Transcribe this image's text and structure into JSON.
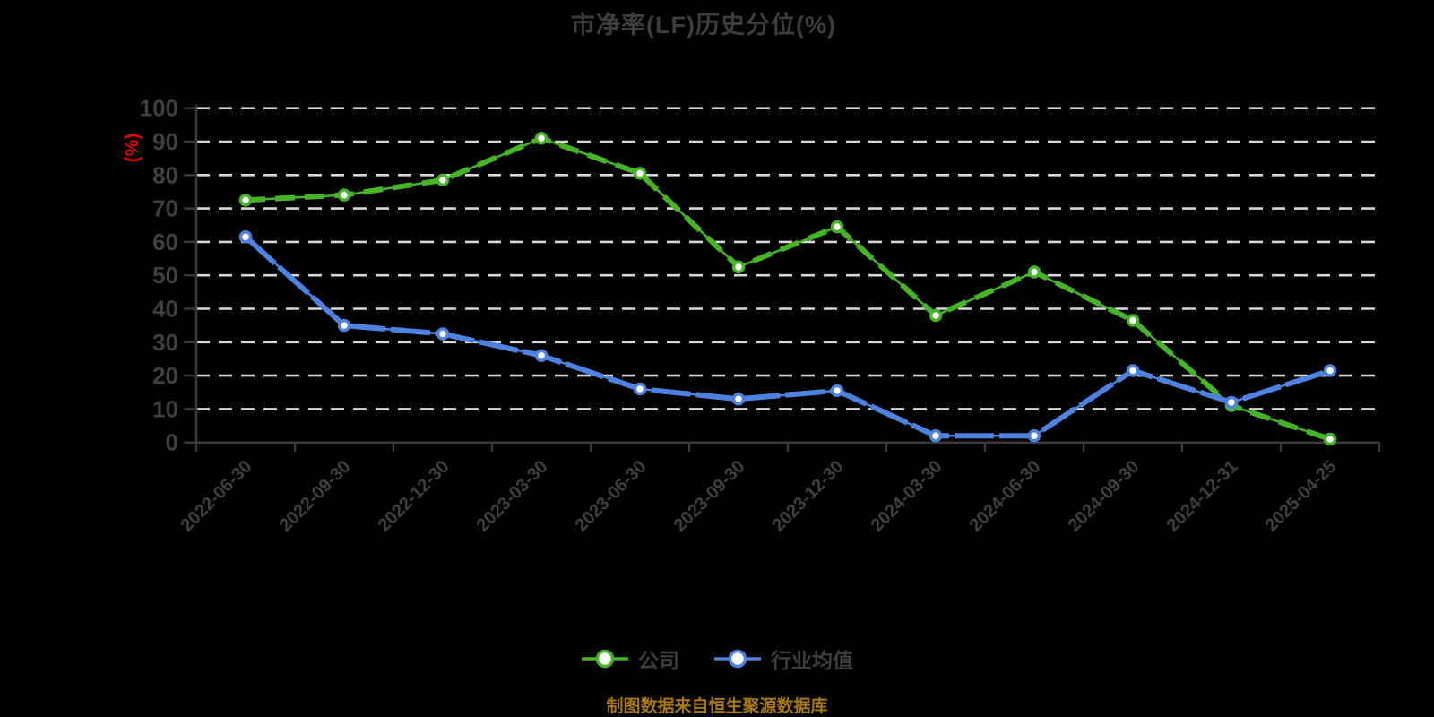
{
  "colors": {
    "background": "#000000",
    "title_text": "#3d3d3d",
    "axis_line": "#3a3a3a",
    "axis_tick_label": "#3f3f3f",
    "gridline": "#d8d8d8",
    "unit_label": "#e60000",
    "legend_text": "#3d3d3d",
    "footer_text": "#a8790f",
    "marker_fill": "#ffffff",
    "company_series": "#46b428",
    "industry_series": "#4e82e0"
  },
  "footer": {
    "source_note": "制图数据来自恒生聚源数据库"
  },
  "chart_data": {
    "type": "line",
    "title": "市净率(LF)历史分位(%)",
    "xlabel": "",
    "ylabel": "(%)",
    "ylim": [
      0,
      100
    ],
    "y_ticks": [
      0,
      10,
      20,
      30,
      40,
      50,
      60,
      70,
      80,
      90,
      100
    ],
    "grid": "horizontal-dashed",
    "legend_position": "bottom",
    "categories": [
      "2022-06-30",
      "2022-09-30",
      "2022-12-30",
      "2023-03-30",
      "2023-06-30",
      "2023-09-30",
      "2023-12-30",
      "2024-03-30",
      "2024-06-30",
      "2024-09-30",
      "2024-12-31",
      "2025-04-25"
    ],
    "series": [
      {
        "name": "公司",
        "color": "#46b428",
        "values": [
          72.5,
          74,
          78.5,
          91,
          80.5,
          52.5,
          64.5,
          38,
          51,
          36.5,
          11,
          1
        ]
      },
      {
        "name": "行业均值",
        "color": "#4e82e0",
        "values": [
          61.5,
          35,
          32.5,
          26,
          16,
          13,
          15.5,
          2,
          2,
          21.5,
          12,
          21.5
        ]
      }
    ]
  }
}
